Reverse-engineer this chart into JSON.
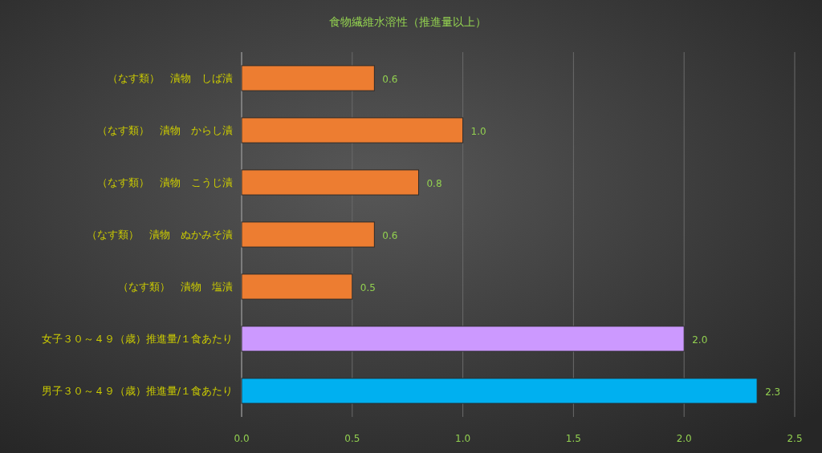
{
  "chart_data": {
    "type": "bar",
    "orientation": "horizontal",
    "title": "食物繊維水溶性（推進量以上）",
    "categories": [
      "（なす類）　漬物　しば漬",
      "（なす類）　漬物　からし漬",
      "（なす類）　漬物　こうじ漬",
      "（なす類）　漬物　ぬかみそ漬",
      "（なす類）　漬物　塩漬",
      "女子３０～４９（歳）推進量/１食あたり",
      "男子３０～４９（歳）推進量/１食あたり"
    ],
    "values": [
      0.6,
      1.0,
      0.8,
      0.6,
      0.5,
      2.0,
      2.33
    ],
    "value_labels": [
      "0.6",
      "1.0",
      "0.8",
      "0.6",
      "0.5",
      "2.0",
      "2.3"
    ],
    "colors": [
      "#ed7d31",
      "#ed7d31",
      "#ed7d31",
      "#ed7d31",
      "#ed7d31",
      "#cc99ff",
      "#00b0f0"
    ],
    "xlim": [
      0,
      2.5
    ],
    "xticks": [
      {
        "value": 0,
        "label": "0.0"
      },
      {
        "value": 0.5,
        "label": "0.5"
      },
      {
        "value": 1,
        "label": "1.0"
      },
      {
        "value": 1.5,
        "label": "1.5"
      },
      {
        "value": 2,
        "label": "2.0"
      },
      {
        "value": 2.5,
        "label": "2.5"
      }
    ],
    "grid": "x"
  }
}
